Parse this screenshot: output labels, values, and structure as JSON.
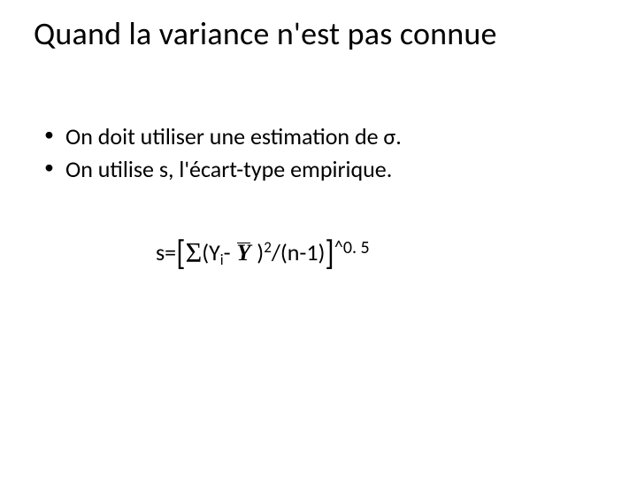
{
  "slide": {
    "title": "Quand la variance n'est pas connue",
    "title_fontsize": 36,
    "title_color": "#000000",
    "bullets": [
      "On doit utiliser une estimation de σ.",
      "On utilise s, l'écart-type empirique."
    ],
    "bullet_fontsize": 26,
    "bullet_color": "#000000",
    "formula": {
      "prefix": "s=",
      "open_bracket": "[",
      "sum_symbol": "Σ",
      "open_paren": "(",
      "var_Y": "Y",
      "subscript_i": "i",
      "minus": "-",
      "ybar": "Y",
      "close_paren": ")",
      "superscript_2": "2",
      "divisor": "/(n-1)",
      "close_bracket": "]",
      "power": "^0. 5"
    },
    "formula_fontsize": 26,
    "background_color": "#ffffff"
  }
}
